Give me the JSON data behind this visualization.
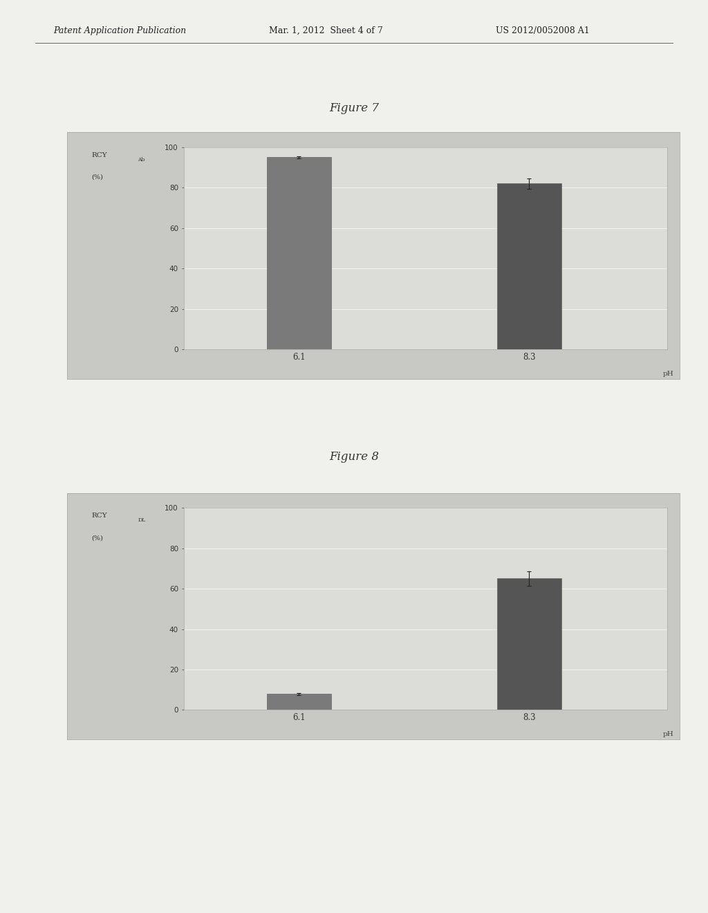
{
  "page_bg": "#f0f0ed",
  "header_left": "Patent Application Publication",
  "header_mid": "Mar. 1, 2012  Sheet 4 of 7",
  "header_right": "US 2012/0052008 A1",
  "fig7_title": "Figure 7",
  "fig8_title": "Figure 8",
  "categories": [
    "6.1",
    "8.3"
  ],
  "fig7_values": [
    95,
    82
  ],
  "fig7_errors": [
    0.5,
    2.5
  ],
  "fig8_values": [
    8,
    65
  ],
  "fig8_errors": [
    0.5,
    3.5
  ],
  "bar_color1": "#7a7a7a",
  "bar_color2": "#555555",
  "outer_box_color": "#c8c8c4",
  "plot_bg": "#dcdcd8",
  "plot_inner_bg": "#d8d8d4",
  "grid_color": "#f0f0ee",
  "axis_area_bg": "#e8e8e4",
  "ylim": [
    0,
    100
  ],
  "yticks": [
    0,
    20,
    40,
    60,
    80,
    100
  ],
  "bar_width": 0.25
}
